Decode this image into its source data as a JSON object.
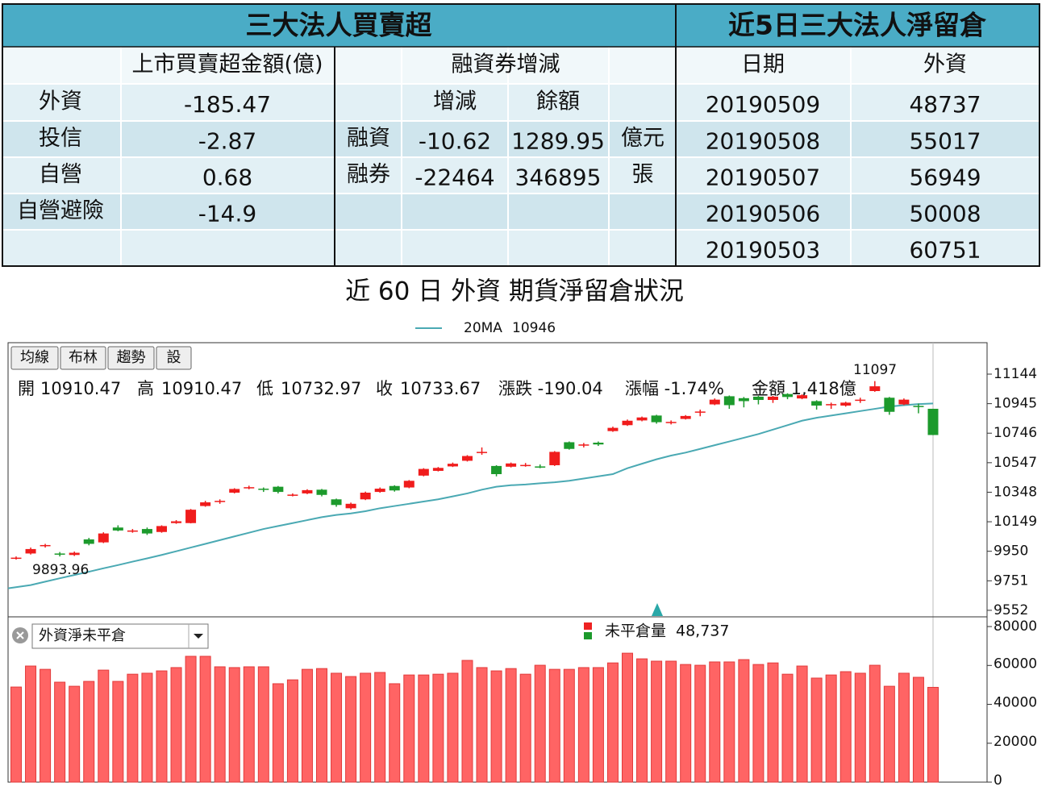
{
  "left_table": {
    "title": "三大法人買賣超",
    "header": {
      "amount": "上市買賣超金額(億)",
      "margin": "融資券增減"
    },
    "margin_columns": [
      "增減",
      "餘額"
    ],
    "rows": [
      {
        "label": "外資",
        "amount": -185.47
      },
      {
        "label": "投信",
        "amount": -2.87
      },
      {
        "label": "自營",
        "amount": 0.68
      },
      {
        "label": "自營避險",
        "amount": -14.9
      }
    ],
    "margin_rows": [
      {
        "label": "融資",
        "change": -10.62,
        "balance": 1289.95,
        "unit": "億元"
      },
      {
        "label": "融券",
        "change": -22464,
        "balance": 346895,
        "unit": "張"
      }
    ]
  },
  "right_table": {
    "title": "近5日三大法人淨留倉",
    "columns": [
      "日期",
      "外資"
    ],
    "rows": [
      [
        "20190509",
        48737
      ],
      [
        "20190508",
        55017
      ],
      [
        "20190507",
        56949
      ],
      [
        "20190506",
        50008
      ],
      [
        "20190503",
        60751
      ]
    ]
  },
  "chart_data": [
    {
      "type": "candlestick",
      "title": "近 60 日 外資 期貨淨留倉狀況",
      "buttons": [
        "均線",
        "布林",
        "趨勢",
        "設"
      ],
      "info_labels": [
        "開",
        "高",
        "低",
        "收"
      ],
      "info_extra": [
        "漲跌 -190.04",
        "漲幅 -1.74%",
        "金額 1,418億"
      ],
      "up_color": "#f01c1c",
      "down_color": "#1c9a2c",
      "open": [
        9905,
        9935,
        9990,
        9935,
        9925,
        10030,
        10010,
        10110,
        10088,
        10100,
        10080,
        10140,
        10140,
        10255,
        10288,
        10345,
        10380,
        10372,
        10385,
        10330,
        10340,
        10365,
        10300,
        10240,
        10300,
        10350,
        10390,
        10380,
        10460,
        10492,
        10522,
        10560,
        10618,
        10525,
        10520,
        10530,
        10522,
        10530,
        10685,
        10668,
        10682,
        10760,
        10800,
        10832,
        10865,
        10820,
        10842,
        10890,
        10940,
        10995,
        10982,
        10992,
        10970,
        11010,
        10980,
        10962,
        10940,
        10932,
        10970,
        11030,
        10985,
        10940,
        10930,
        10910.47
      ],
      "high": [
        9915,
        9975,
        10000,
        9945,
        9948,
        10040,
        10078,
        10125,
        10100,
        10110,
        10125,
        10160,
        10235,
        10290,
        10300,
        10375,
        10392,
        10380,
        10390,
        10340,
        10368,
        10370,
        10305,
        10278,
        10352,
        10380,
        10395,
        10430,
        10510,
        10518,
        10548,
        10598,
        10650,
        10530,
        10548,
        10545,
        10535,
        10625,
        10690,
        10680,
        10690,
        10790,
        10838,
        10858,
        10870,
        10832,
        10868,
        10905,
        10980,
        11000,
        10990,
        10998,
        10998,
        11015,
        11008,
        10968,
        10952,
        10958,
        10985,
        11097,
        10990,
        10980,
        10945,
        10910.47
      ],
      "low": [
        9893.96,
        9928,
        9975,
        9915,
        9918,
        9990,
        10005,
        10085,
        10075,
        10060,
        10075,
        10135,
        10138,
        10250,
        10270,
        10340,
        10368,
        10350,
        10340,
        10320,
        10335,
        10320,
        10250,
        10232,
        10295,
        10345,
        10352,
        10375,
        10455,
        10488,
        10518,
        10555,
        10600,
        10455,
        10515,
        10520,
        10510,
        10525,
        10635,
        10650,
        10660,
        10755,
        10795,
        10826,
        10810,
        10805,
        10838,
        10860,
        10935,
        10910,
        10920,
        10940,
        10950,
        10975,
        10975,
        10905,
        10910,
        10925,
        10950,
        11025,
        10870,
        10935,
        10880,
        10732.97
      ],
      "close": [
        9907,
        9965,
        9992,
        9933,
        9940,
        10000,
        10070,
        10090,
        10090,
        10070,
        10120,
        10152,
        10230,
        10280,
        10290,
        10370,
        10382,
        10370,
        10350,
        10332,
        10362,
        10330,
        10262,
        10270,
        10345,
        10372,
        10360,
        10425,
        10505,
        10512,
        10540,
        10592,
        10620,
        10470,
        10542,
        10532,
        10520,
        10620,
        10640,
        10670,
        10670,
        10782,
        10830,
        10852,
        10820,
        10822,
        10862,
        10892,
        10972,
        10935,
        10962,
        10970,
        10992,
        10990,
        11002,
        10932,
        10942,
        10952,
        10972,
        11062,
        10890,
        10972,
        10928,
        10733.67
      ],
      "series": [
        {
          "name": "20MA",
          "color": "#4aa9b3",
          "values": [
            9700,
            9722,
            9745,
            9768,
            9790,
            9812,
            9835,
            9857,
            9880,
            9902,
            9925,
            9950,
            9975,
            10000,
            10025,
            10050,
            10075,
            10100,
            10120,
            10140,
            10160,
            10180,
            10195,
            10205,
            10220,
            10240,
            10255,
            10270,
            10285,
            10300,
            10320,
            10340,
            10365,
            10385,
            10395,
            10400,
            10408,
            10415,
            10425,
            10440,
            10455,
            10470,
            10510,
            10540,
            10570,
            10595,
            10615,
            10640,
            10665,
            10690,
            10715,
            10740,
            10770,
            10800,
            10830,
            10850,
            10865,
            10880,
            10895,
            10910,
            10925,
            10935,
            10942,
            10946
          ]
        }
      ],
      "ylim": [
        9508,
        11356
      ],
      "yticks": [
        9552,
        9751,
        9950,
        10149,
        10348,
        10547,
        10746,
        10945,
        11144
      ]
    },
    {
      "type": "bar",
      "selector": "外資淨未平倉",
      "series": [
        {
          "name": "未平倉量",
          "color": "#ff6464",
          "legend_label": "48,737",
          "values": [
            48900,
            59700,
            58000,
            51400,
            49300,
            51800,
            57600,
            51800,
            55500,
            56000,
            57200,
            58900,
            64700,
            64700,
            59300,
            58900,
            59300,
            59300,
            50600,
            52600,
            58000,
            58400,
            56000,
            54300,
            56000,
            56400,
            50600,
            55100,
            55100,
            55500,
            56000,
            62600,
            58900,
            57200,
            58400,
            55500,
            60100,
            58000,
            58000,
            58900,
            58900,
            61300,
            66300,
            63400,
            62200,
            62200,
            60500,
            60100,
            61800,
            61800,
            63000,
            60500,
            61300,
            55500,
            59700,
            53500,
            55100,
            56800,
            56000,
            60100,
            49300,
            56000,
            53900,
            48737
          ]
        }
      ],
      "ylim": [
        0,
        85000
      ],
      "yticks": [
        0,
        20000,
        40000,
        60000,
        80000
      ]
    }
  ]
}
